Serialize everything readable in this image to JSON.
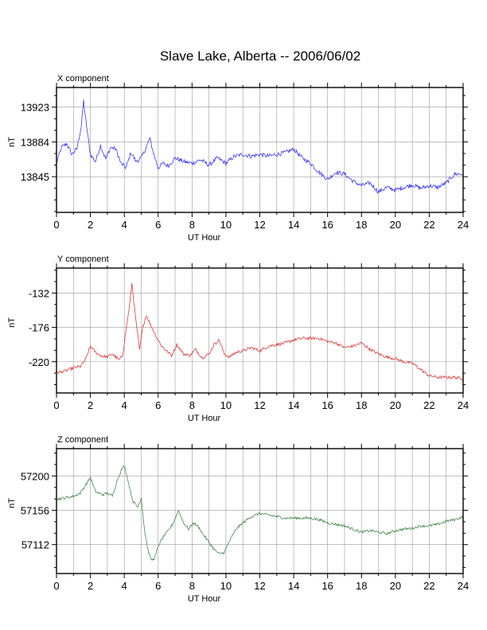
{
  "page_title": "Slave Lake, Alberta -- 2006/06/02",
  "chart_data": [
    {
      "type": "line",
      "panel_label": "X component",
      "xlabel": "UT Hour",
      "ylabel": "nT",
      "xlim": [
        0,
        24
      ],
      "ylim": [
        13805,
        13945
      ],
      "x_ticks": [
        0,
        2,
        4,
        6,
        8,
        10,
        12,
        14,
        16,
        18,
        20,
        22,
        24
      ],
      "x_tick_labels": [
        "0",
        "2",
        "4",
        "6",
        "8",
        "10",
        "12",
        "14",
        "16",
        "18",
        "20",
        "22",
        "24"
      ],
      "y_ticks": [
        13845,
        13884,
        13923
      ],
      "y_tick_labels": [
        "13845",
        "13884",
        "13923"
      ],
      "grid": true,
      "color": "#1f1fff",
      "noise": 2.5,
      "series": [
        {
          "x": [
            0,
            0.3,
            0.6,
            0.9,
            1.2,
            1.45,
            1.6,
            1.75,
            2.0,
            2.3,
            2.6,
            2.9,
            3.2,
            3.5,
            3.8,
            4.1,
            4.4,
            4.7,
            5.0,
            5.3,
            5.5,
            5.75,
            6.0,
            6.3,
            6.6,
            7.0,
            7.5,
            8.0,
            8.5,
            9.0,
            9.5,
            10.0,
            10.5,
            11.0,
            11.5,
            12.0,
            12.5,
            13.0,
            13.5,
            14.0,
            14.5,
            15.0,
            15.5,
            16.0,
            16.5,
            17.0,
            17.5,
            18.0,
            18.5,
            19.0,
            19.5,
            20.0,
            20.5,
            21.0,
            21.5,
            22.0,
            22.5,
            23.0,
            23.5,
            24.0
          ],
          "y": [
            13860,
            13878,
            13882,
            13870,
            13876,
            13900,
            13930,
            13905,
            13870,
            13862,
            13880,
            13865,
            13878,
            13876,
            13860,
            13855,
            13872,
            13862,
            13866,
            13878,
            13888,
            13870,
            13855,
            13860,
            13857,
            13866,
            13862,
            13860,
            13864,
            13858,
            13866,
            13860,
            13868,
            13870,
            13868,
            13870,
            13868,
            13870,
            13872,
            13876,
            13866,
            13860,
            13850,
            13842,
            13850,
            13848,
            13840,
            13835,
            13838,
            13828,
            13833,
            13830,
            13833,
            13836,
            13832,
            13835,
            13833,
            13838,
            13848,
            13848
          ]
        }
      ]
    },
    {
      "type": "line",
      "panel_label": "Y component",
      "xlabel": "UT Hour",
      "ylabel": "nT",
      "xlim": [
        0,
        24
      ],
      "ylim": [
        -260,
        -100
      ],
      "x_ticks": [
        0,
        2,
        4,
        6,
        8,
        10,
        12,
        14,
        16,
        18,
        20,
        22,
        24
      ],
      "x_tick_labels": [
        "0",
        "2",
        "4",
        "6",
        "8",
        "10",
        "12",
        "14",
        "16",
        "18",
        "20",
        "22",
        "24"
      ],
      "y_ticks": [
        -220,
        -176,
        -132
      ],
      "y_tick_labels": [
        "-220",
        "-176",
        "-132"
      ],
      "grid": true,
      "color": "#e02020",
      "noise": 2,
      "series": [
        {
          "x": [
            0,
            0.5,
            1.0,
            1.4,
            1.7,
            2.0,
            2.3,
            2.6,
            3.0,
            3.3,
            3.7,
            3.9,
            4.1,
            4.3,
            4.45,
            4.7,
            4.9,
            5.1,
            5.3,
            5.6,
            5.9,
            6.2,
            6.5,
            6.8,
            7.1,
            7.5,
            7.9,
            8.2,
            8.6,
            9.0,
            9.3,
            9.6,
            9.9,
            10.2,
            10.6,
            11.0,
            11.5,
            12.0,
            12.5,
            13.0,
            13.5,
            14.0,
            14.5,
            15.0,
            15.5,
            16.0,
            16.5,
            17.0,
            17.5,
            18.0,
            18.5,
            19.0,
            19.5,
            20.0,
            20.5,
            21.0,
            21.5,
            22.0,
            22.5,
            23.0,
            23.5,
            24.0
          ],
          "y": [
            -234,
            -232,
            -228,
            -226,
            -218,
            -200,
            -208,
            -212,
            -214,
            -210,
            -218,
            -212,
            -180,
            -150,
            -120,
            -170,
            -205,
            -175,
            -160,
            -175,
            -188,
            -200,
            -206,
            -212,
            -198,
            -210,
            -212,
            -204,
            -215,
            -210,
            -198,
            -192,
            -210,
            -214,
            -208,
            -206,
            -202,
            -206,
            -200,
            -198,
            -196,
            -192,
            -190,
            -190,
            -190,
            -194,
            -196,
            -202,
            -200,
            -196,
            -204,
            -210,
            -214,
            -216,
            -220,
            -222,
            -230,
            -238,
            -240,
            -240,
            -240,
            -242
          ]
        }
      ]
    },
    {
      "type": "line",
      "panel_label": "Z component",
      "xlabel": "UT Hour",
      "ylabel": "nT",
      "xlim": [
        0,
        24
      ],
      "ylim": [
        57075,
        57235
      ],
      "x_ticks": [
        0,
        2,
        4,
        6,
        8,
        10,
        12,
        14,
        16,
        18,
        20,
        22,
        24
      ],
      "x_tick_labels": [
        "0",
        "2",
        "4",
        "6",
        "8",
        "10",
        "12",
        "14",
        "16",
        "18",
        "20",
        "22",
        "24"
      ],
      "y_ticks": [
        57112,
        57156,
        57200
      ],
      "y_tick_labels": [
        "57112",
        "57156",
        "57200"
      ],
      "grid": true,
      "color": "#2e7d32",
      "noise": 1.8,
      "series": [
        {
          "x": [
            0,
            0.5,
            1.0,
            1.4,
            1.7,
            2.0,
            2.3,
            2.7,
            3.0,
            3.3,
            3.6,
            3.8,
            4.0,
            4.2,
            4.5,
            4.8,
            5.0,
            5.2,
            5.4,
            5.6,
            5.8,
            6.0,
            6.3,
            6.6,
            6.9,
            7.2,
            7.5,
            7.8,
            8.1,
            8.4,
            8.7,
            9.0,
            9.3,
            9.6,
            9.9,
            10.2,
            10.6,
            11.0,
            11.5,
            12.0,
            12.5,
            13.0,
            13.5,
            14.0,
            14.5,
            15.0,
            15.5,
            16.0,
            16.5,
            17.0,
            17.5,
            18.0,
            18.5,
            19.0,
            19.5,
            20.0,
            20.5,
            21.0,
            21.5,
            22.0,
            22.5,
            23.0,
            23.5,
            24.0
          ],
          "y": [
            57170,
            57172,
            57174,
            57178,
            57188,
            57198,
            57180,
            57176,
            57178,
            57174,
            57196,
            57206,
            57214,
            57196,
            57168,
            57160,
            57172,
            57130,
            57105,
            57092,
            57095,
            57110,
            57122,
            57130,
            57140,
            57156,
            57140,
            57132,
            57140,
            57134,
            57124,
            57115,
            57106,
            57100,
            57102,
            57116,
            57132,
            57140,
            57148,
            57152,
            57150,
            57148,
            57146,
            57146,
            57146,
            57146,
            57144,
            57140,
            57138,
            57136,
            57132,
            57128,
            57130,
            57128,
            57126,
            57130,
            57132,
            57133,
            57136,
            57136,
            57138,
            57142,
            57144,
            57148
          ]
        }
      ]
    }
  ]
}
